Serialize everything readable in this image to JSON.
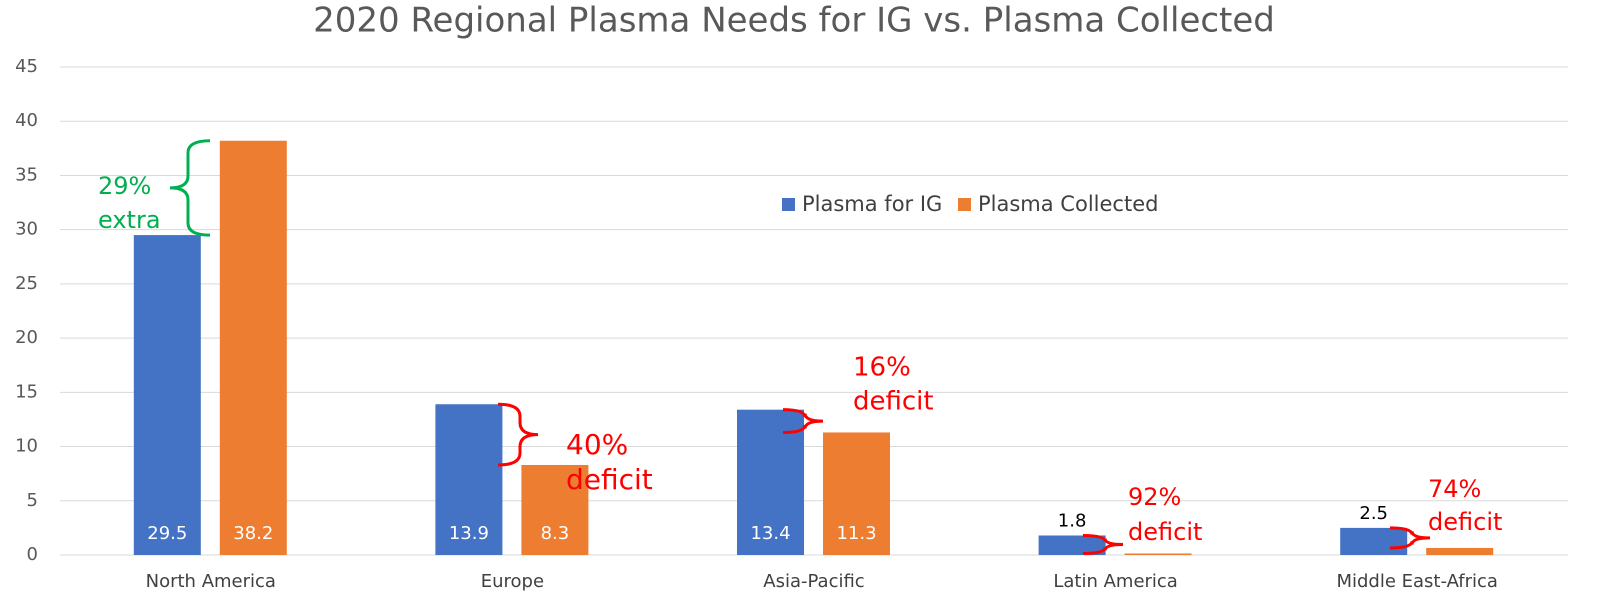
{
  "chart_data": {
    "type": "bar",
    "title": "2020 Regional Plasma Needs for IG vs. Plasma Collected",
    "categories": [
      "North America",
      "Europe",
      "Asia-Pacific",
      "Latin America",
      "Middle East-Africa"
    ],
    "series": [
      {
        "name": "Plasma for IG",
        "color": "#4472c4",
        "values": [
          29.5,
          13.9,
          13.4,
          1.8,
          2.5
        ]
      },
      {
        "name": "Plasma Collected",
        "color": "#ed7d31",
        "values": [
          38.2,
          8.3,
          11.3,
          0.14,
          0.65
        ],
        "value_labels": [
          "38.2",
          "8.3",
          "11.3",
          null,
          null
        ]
      }
    ],
    "ylim": [
      0,
      45
    ],
    "yticks": [
      0,
      5,
      10,
      15,
      20,
      25,
      30,
      35,
      40,
      45
    ],
    "grid": true,
    "legend": "top-right",
    "annotations": [
      {
        "text": [
          "29%",
          "extra"
        ],
        "color": "#00b050"
      },
      {
        "text": [
          "40%",
          "deficit"
        ],
        "color": "#ff0000"
      },
      {
        "text": [
          "16%",
          "deficit"
        ],
        "color": "#ff0000"
      },
      {
        "text": [
          "92%",
          "deficit"
        ],
        "color": "#ff0000"
      },
      {
        "text": [
          "74%",
          "deficit"
        ],
        "color": "#ff0000"
      }
    ]
  }
}
